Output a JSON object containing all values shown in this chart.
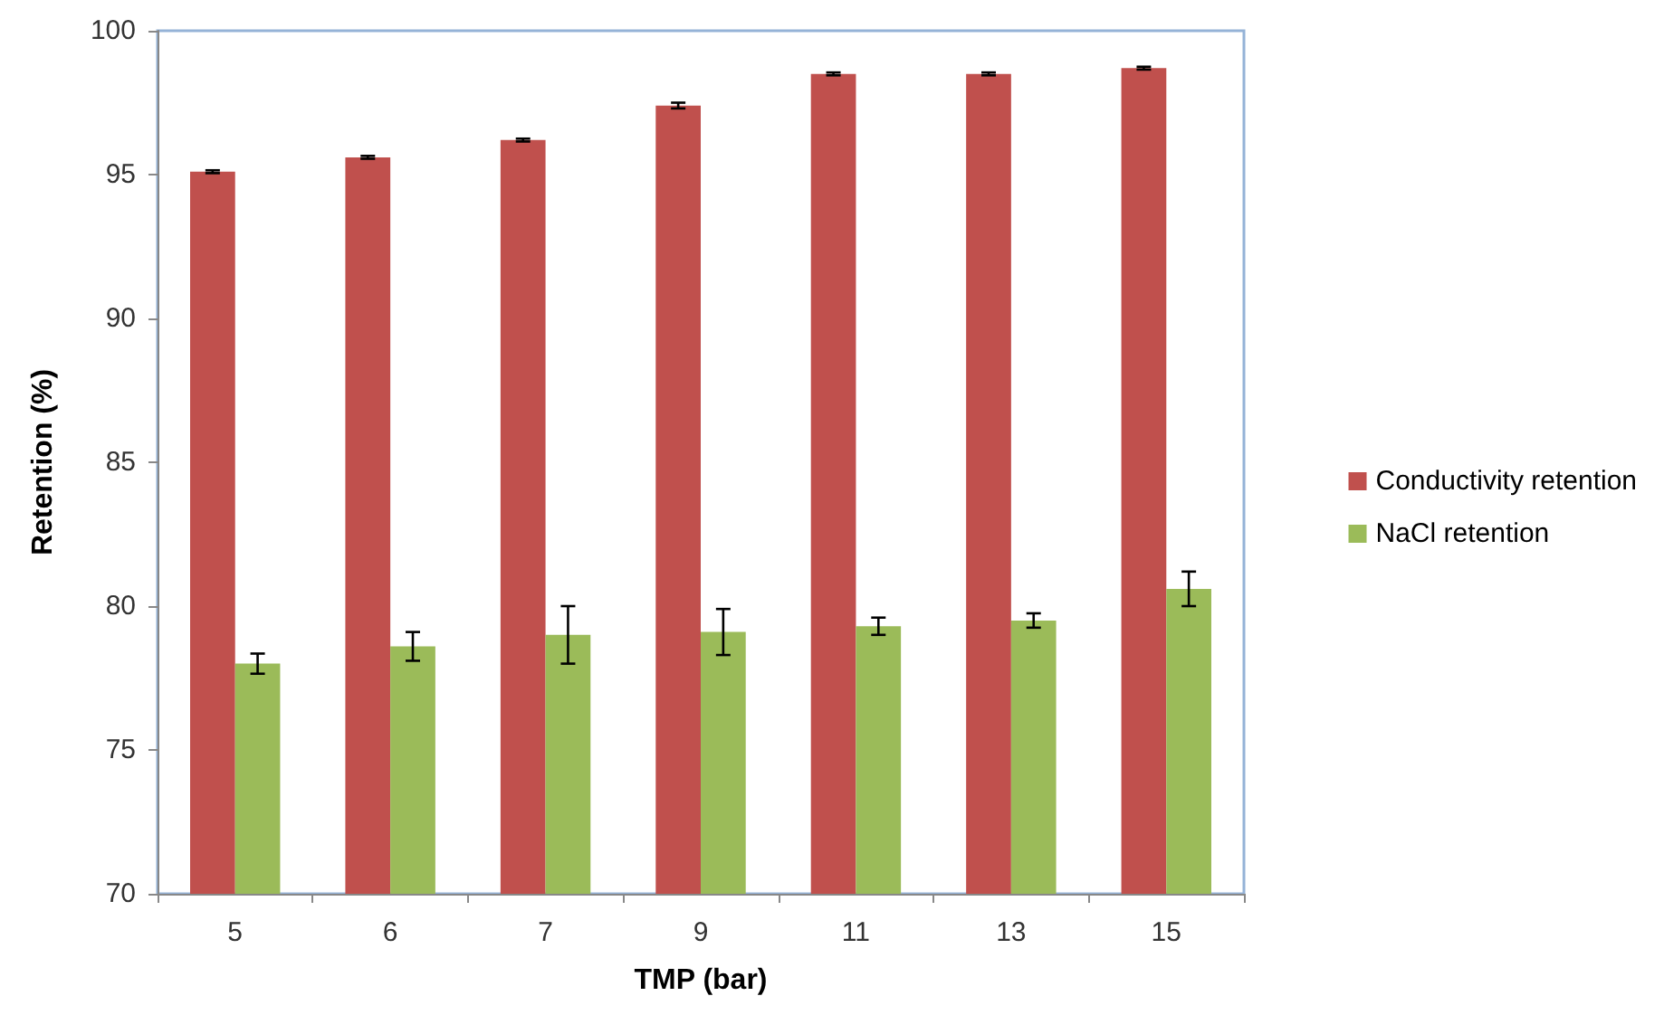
{
  "chart_data": {
    "type": "bar",
    "xlabel": "TMP (bar)",
    "ylabel": "Retention (%)",
    "categories": [
      "5",
      "6",
      "7",
      "9",
      "11",
      "13",
      "15"
    ],
    "series": [
      {
        "name": "Conductivity retention",
        "color": "#c0504d",
        "values": [
          95.1,
          95.6,
          96.2,
          97.4,
          98.5,
          98.5,
          98.7
        ],
        "errors": [
          0.05,
          0.05,
          0.05,
          0.1,
          0.05,
          0.05,
          0.05
        ]
      },
      {
        "name": "NaCl retention",
        "color": "#9bbb59",
        "values": [
          78.0,
          78.6,
          79.0,
          79.1,
          79.3,
          79.5,
          80.6
        ],
        "errors": [
          0.35,
          0.5,
          1.0,
          0.8,
          0.3,
          0.25,
          0.6
        ]
      }
    ],
    "ylim": [
      70,
      100
    ],
    "yticks": [
      70,
      75,
      80,
      85,
      90,
      95,
      100
    ],
    "grid": false,
    "legend": "right"
  }
}
